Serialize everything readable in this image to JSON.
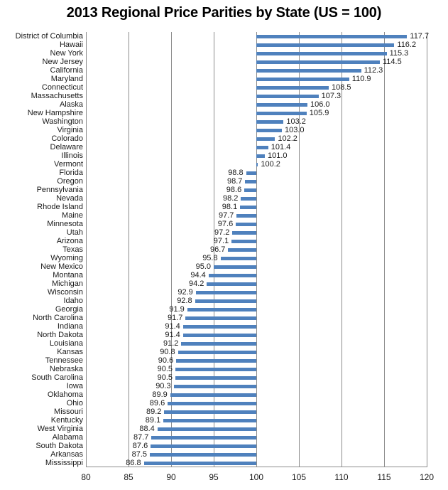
{
  "chart_data": {
    "type": "bar",
    "orientation": "horizontal",
    "title": "2013 Regional Price Parities by State (US = 100)",
    "xlabel": "",
    "ylabel": "",
    "xlim": [
      80,
      120
    ],
    "xticks": [
      80,
      85,
      90,
      95,
      100,
      105,
      110,
      115,
      120
    ],
    "baseline": 100,
    "grid": true,
    "legend": "none",
    "bar_color": "#4F81BD",
    "gridline_color": "#8c8c8c",
    "value_label_decimals": 1,
    "categories": [
      "District of Columbia",
      "Hawaii",
      "New York",
      "New Jersey",
      "California",
      "Maryland",
      "Connecticut",
      "Massachusetts",
      "Alaska",
      "New Hampshire",
      "Washington",
      "Virginia",
      "Colorado",
      "Delaware",
      "Illinois",
      "Vermont",
      "Florida",
      "Oregon",
      "Pennsylvania",
      "Nevada",
      "Rhode Island",
      "Maine",
      "Minnesota",
      "Utah",
      "Arizona",
      "Texas",
      "Wyoming",
      "New Mexico",
      "Montana",
      "Michigan",
      "Wisconsin",
      "Idaho",
      "Georgia",
      "North Carolina",
      "Indiana",
      "North Dakota",
      "Louisiana",
      "Kansas",
      "Tennessee",
      "Nebraska",
      "South Carolina",
      "Iowa",
      "Oklahoma",
      "Ohio",
      "Missouri",
      "Kentucky",
      "West Virginia",
      "Alabama",
      "South Dakota",
      "Arkansas",
      "Mississippi"
    ],
    "values": [
      117.7,
      116.2,
      115.3,
      114.5,
      112.3,
      110.9,
      108.5,
      107.3,
      106.0,
      105.9,
      103.2,
      103.0,
      102.2,
      101.4,
      101.0,
      100.2,
      98.8,
      98.7,
      98.6,
      98.2,
      98.1,
      97.7,
      97.6,
      97.2,
      97.1,
      96.7,
      95.8,
      95.0,
      94.4,
      94.2,
      92.9,
      92.8,
      91.9,
      91.7,
      91.4,
      91.4,
      91.2,
      90.8,
      90.6,
      90.5,
      90.5,
      90.3,
      89.9,
      89.6,
      89.2,
      89.1,
      88.4,
      87.7,
      87.6,
      87.5,
      86.8
    ]
  }
}
